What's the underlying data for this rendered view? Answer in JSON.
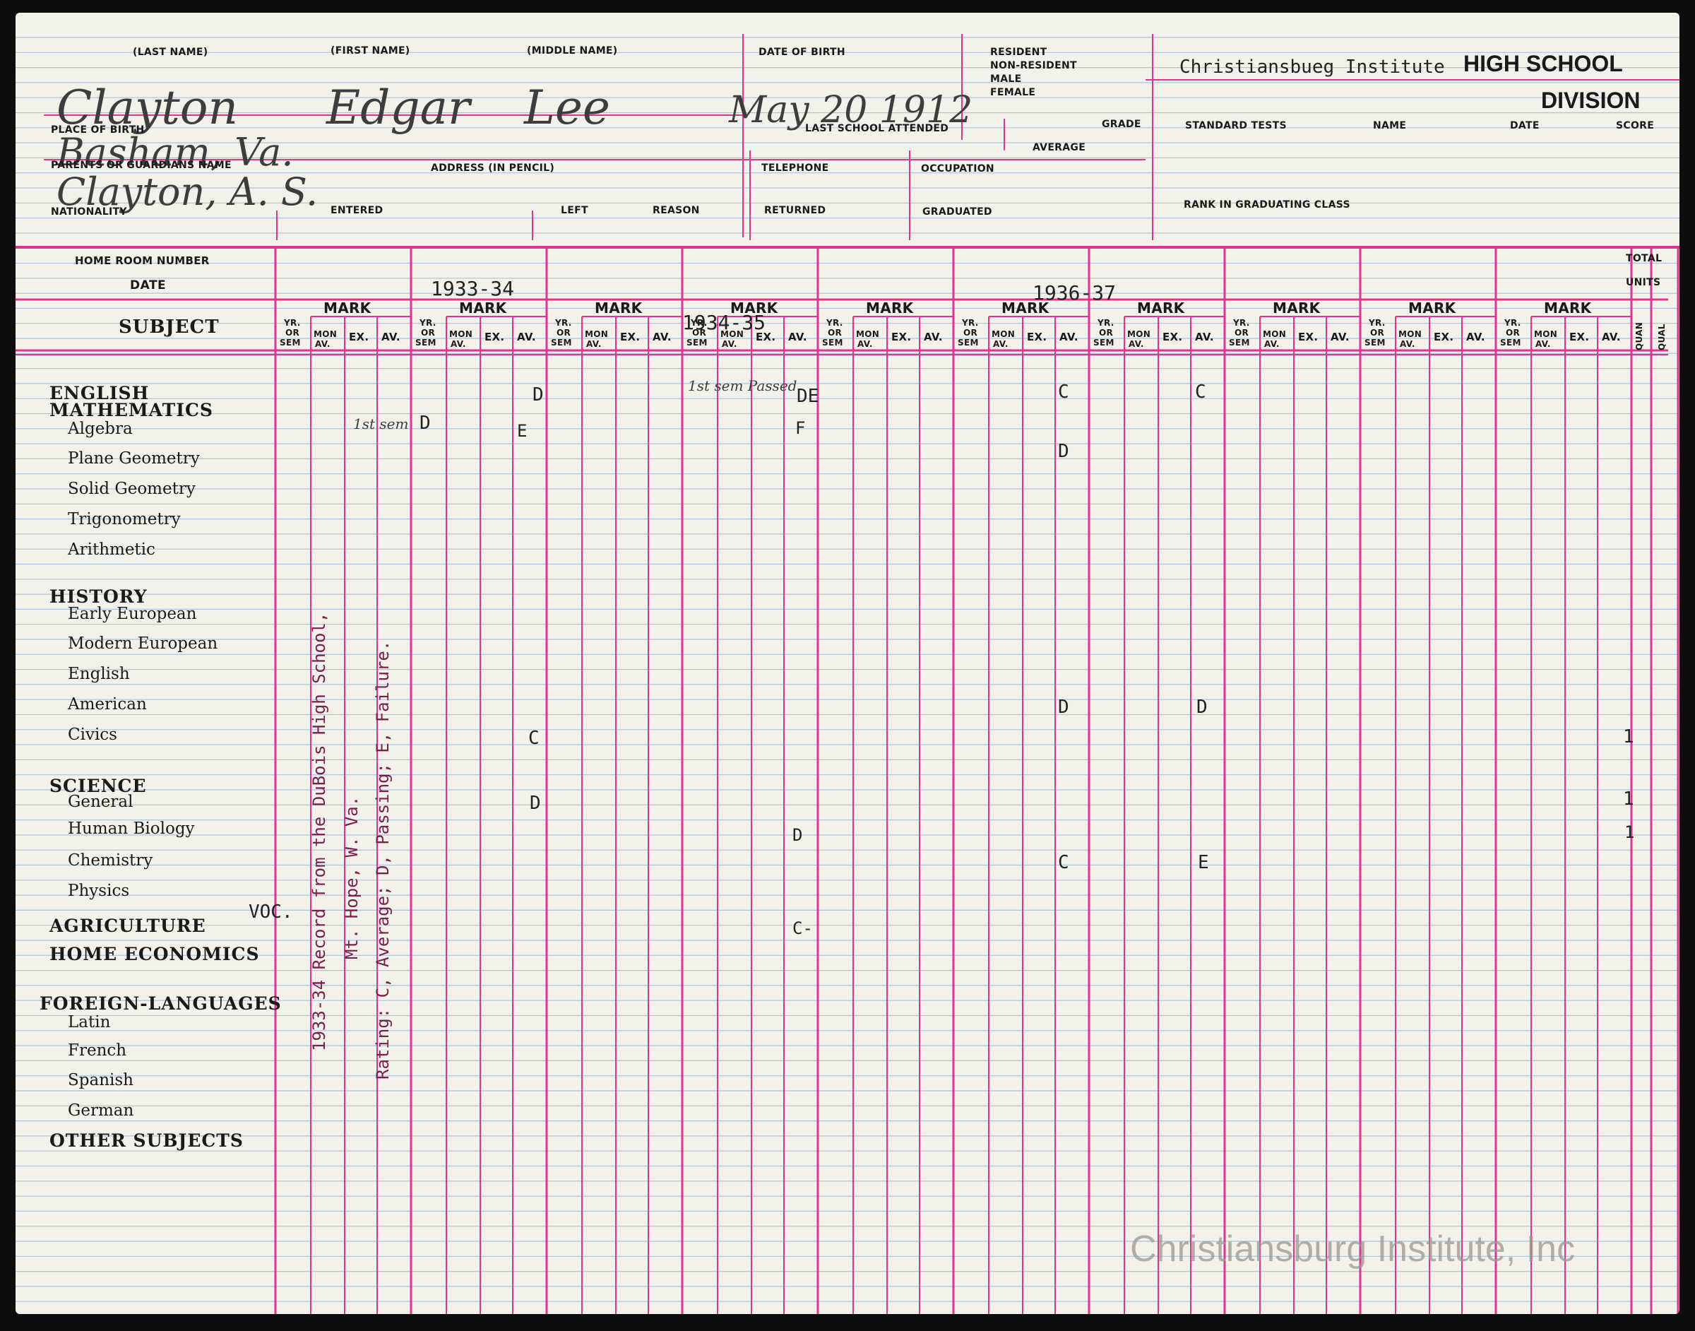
{
  "header": {
    "last_name_label": "(LAST NAME)",
    "first_name_label": "(FIRST NAME)",
    "middle_name_label": "(MIDDLE NAME)",
    "dob_label": "DATE OF BIRTH",
    "residency_labels": [
      "RESIDENT",
      "NON-RESIDENT",
      "MALE",
      "FEMALE"
    ],
    "last_name": "Clayton",
    "first_name": "Edgar",
    "middle_name": "Lee",
    "dob": "May 20 1912",
    "place_of_birth_label": "PLACE OF BIRTH",
    "place_of_birth": "Basham, Va.",
    "last_school_label": "LAST SCHOOL ATTENDED",
    "grade_label": "GRADE",
    "average_label": "AVERAGE",
    "parents_label": "PARENTS OR GUARDIANS NAME",
    "parent_name": "Clayton, A. S.",
    "address_label": "ADDRESS (IN PENCIL)",
    "telephone_label": "TELEPHONE",
    "occupation_label": "OCCUPATION",
    "nationality_label": "NATIONALITY",
    "entered_label": "ENTERED",
    "left_label": "LEFT",
    "reason_label": "REASON",
    "returned_label": "RETURNED",
    "graduated_label": "GRADUATED"
  },
  "right_panel": {
    "school_name": "Christiansbueg Institute",
    "high_school": "HIGH SCHOOL",
    "division": "DIVISION",
    "standard_tests": "STANDARD TESTS",
    "name": "NAME",
    "date": "DATE",
    "score": "SCORE",
    "rank": "RANK IN GRADUATING CLASS"
  },
  "grid_header": {
    "home_room": "HOME ROOM NUMBER",
    "date": "DATE",
    "subject": "SUBJECT",
    "total": "TOTAL",
    "units": "UNITS",
    "quan": "QUAN",
    "qual": "QUAL",
    "mark": "MARK",
    "yr": "YR.",
    "or": "OR",
    "sem": "SEM",
    "mon": "MON",
    "av_short": "AV.",
    "ex": "EX.",
    "av": "AV.",
    "years": [
      "1933-34",
      "1934-35",
      "1936-37"
    ]
  },
  "subjects": [
    {
      "text": "ENGLISH",
      "heading": true
    },
    {
      "text": "MATHEMATICS",
      "heading": true
    },
    {
      "text": "Algebra",
      "heading": false
    },
    {
      "text": "Plane Geometry",
      "heading": false
    },
    {
      "text": "Solid Geometry",
      "heading": false
    },
    {
      "text": "Trigonometry",
      "heading": false
    },
    {
      "text": "Arithmetic",
      "heading": false
    },
    {
      "text": "HISTORY",
      "heading": true
    },
    {
      "text": "Early European",
      "heading": false
    },
    {
      "text": "Modern European",
      "heading": false
    },
    {
      "text": "English",
      "heading": false
    },
    {
      "text": "American",
      "heading": false
    },
    {
      "text": "Civics",
      "heading": false
    },
    {
      "text": "SCIENCE",
      "heading": true
    },
    {
      "text": "General",
      "heading": false
    },
    {
      "text": "Human Biology",
      "heading": false
    },
    {
      "text": "Chemistry",
      "heading": false
    },
    {
      "text": "Physics",
      "heading": false
    },
    {
      "text": "AGRICULTURE",
      "heading": true
    },
    {
      "text": "HOME ECONOMICS",
      "heading": true
    },
    {
      "text": "FOREIGN-LANGUAGES",
      "heading": true
    },
    {
      "text": "Latin",
      "heading": false
    },
    {
      "text": "French",
      "heading": false
    },
    {
      "text": "Spanish",
      "heading": false
    },
    {
      "text": "German",
      "heading": false
    },
    {
      "text": "OTHER SUBJECTS",
      "heading": true
    }
  ],
  "voc": "VOC.",
  "marks": [
    {
      "text": "D"
    },
    {
      "text": "1st sem"
    },
    {
      "text": "D"
    },
    {
      "text": "E"
    },
    {
      "text": "C"
    },
    {
      "text": "D"
    },
    {
      "text": "1st sem Passed"
    },
    {
      "text": "DE"
    },
    {
      "text": "F"
    },
    {
      "text": "D"
    },
    {
      "text": "C-"
    },
    {
      "text": "C"
    },
    {
      "text": "D"
    },
    {
      "text": "D"
    },
    {
      "text": "C"
    },
    {
      "text": "C"
    },
    {
      "text": "D"
    },
    {
      "text": "E"
    },
    {
      "text": "1"
    },
    {
      "text": "1"
    },
    {
      "text": "1"
    }
  ],
  "vertical_notes": [
    "1933-34 Record from the DuBois High School,",
    "Mt. Hope, W. Va.",
    "Rating: C, Average; D, Passing; E, Failure."
  ],
  "watermark": "Christiansburg Institute, Inc",
  "colors": {
    "grid_magenta": "#e0328f",
    "rule_blue": "#a9c4dc",
    "paper": "#f3f2ea"
  }
}
